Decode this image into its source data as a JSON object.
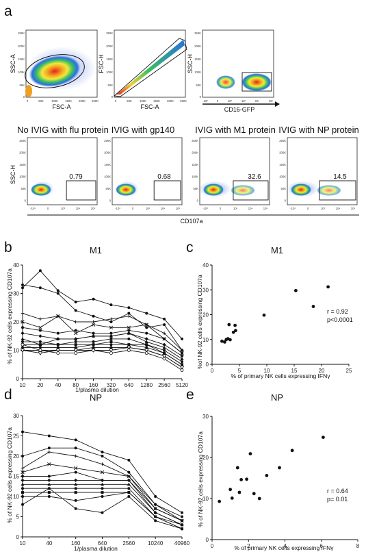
{
  "panel_labels": {
    "a": "a",
    "b": "b",
    "c": "c",
    "d": "d",
    "e": "e"
  },
  "facs_top": [
    {
      "ylabel": "SSC-A",
      "xlabel": "FSC-A",
      "yticks": [
        "250K",
        "200K",
        "150K",
        "100K",
        "50K",
        "0"
      ],
      "xticks": [
        "0",
        "50K",
        "100K",
        "150K",
        "200K",
        "250K"
      ]
    },
    {
      "ylabel": "FSC-H",
      "xlabel": "FSC-A",
      "yticks": [
        "250K",
        "200K",
        "150K",
        "100K",
        "50K",
        "0"
      ],
      "xticks": [
        "0",
        "50K",
        "100K",
        "150K",
        "200K",
        "250K"
      ]
    },
    {
      "ylabel": "SSC-H",
      "xlabel": "CD16-GFP",
      "yticks": [
        "250K",
        "200K",
        "150K",
        "100K",
        "50K",
        "0"
      ],
      "xticks": [
        "-10²",
        "0",
        "10²",
        "10³",
        "10⁴",
        "10⁵"
      ]
    }
  ],
  "facs_bottom": {
    "ylabel": "SSC-H",
    "xlabel": "CD107a",
    "yticks": [
      "250K",
      "200K",
      "150K",
      "100K",
      "50K",
      "0"
    ],
    "xticks": [
      "-10³",
      "0",
      "10³",
      "10⁴",
      "10⁵"
    ],
    "panels": [
      {
        "title": "No IVIG with flu protein",
        "percent": "0.79"
      },
      {
        "title": "IVIG with gp140",
        "percent": "0.68"
      },
      {
        "title": "IVIG with M1 protein",
        "percent": "32.6"
      },
      {
        "title": "IVIG with NP protein",
        "percent": "14.5"
      }
    ]
  },
  "chart_data": [
    {
      "id": "b",
      "type": "line",
      "title": "M1",
      "xlabel": "1/plasma dilution",
      "ylabel": "% of NK-92 cells expressing CD107a",
      "categories": [
        "10",
        "20",
        "40",
        "80",
        "160",
        "320",
        "640",
        "1280",
        "2560",
        "5120"
      ],
      "ylim": [
        0,
        40
      ],
      "yticks": [
        "0",
        "10",
        "20",
        "30",
        "40"
      ],
      "series": [
        {
          "values": [
            32,
            38,
            31,
            27,
            28,
            26,
            25,
            23,
            21,
            14
          ]
        },
        {
          "values": [
            33,
            32,
            30,
            24,
            22,
            20,
            23,
            18,
            19,
            10
          ]
        },
        {
          "values": [
            23,
            21,
            22,
            20,
            20,
            21,
            22,
            19,
            16,
            10
          ]
        },
        {
          "values": [
            20,
            18,
            22,
            16,
            19,
            18,
            18,
            19,
            14,
            9
          ]
        },
        {
          "values": [
            18,
            17,
            16,
            17,
            16,
            16,
            17,
            16,
            14,
            9
          ]
        },
        {
          "values": [
            16,
            15,
            14,
            14,
            15,
            15,
            16,
            14,
            12,
            8
          ]
        },
        {
          "values": [
            14,
            12,
            14,
            14,
            15,
            15,
            16,
            13,
            11,
            7
          ]
        },
        {
          "values": [
            13,
            13,
            12,
            13,
            13,
            14,
            14,
            12,
            10,
            6
          ]
        },
        {
          "values": [
            12,
            12,
            12,
            12,
            12,
            13,
            12,
            12,
            9,
            5
          ]
        },
        {
          "values": [
            11,
            11,
            11,
            11,
            12,
            12,
            12,
            11,
            9,
            5
          ]
        },
        {
          "values": [
            10,
            10,
            10,
            10,
            11,
            11,
            11,
            10,
            8,
            4
          ]
        },
        {
          "values": [
            10,
            9,
            10,
            10,
            10,
            10,
            11,
            10,
            8,
            4
          ]
        },
        {
          "values": [
            12,
            10,
            9,
            9,
            10,
            9,
            10,
            9,
            7,
            3
          ]
        }
      ]
    },
    {
      "id": "c",
      "type": "scatter",
      "title": "M1",
      "xlabel": "% of primary NK cells expressing IFNγ",
      "ylabel": "%of NK-92 cells expressing CD107a",
      "xlim": [
        0,
        25
      ],
      "ylim": [
        0,
        40
      ],
      "xticks": [
        "0",
        "5",
        "10",
        "15",
        "20",
        "25"
      ],
      "yticks": [
        "0",
        "10",
        "20",
        "30",
        "40"
      ],
      "annotation": [
        "r = 0.92",
        "p<0.0001"
      ],
      "points": [
        [
          1.8,
          9.3
        ],
        [
          2.3,
          9.0
        ],
        [
          2.6,
          10.0
        ],
        [
          2.9,
          10.3
        ],
        [
          3.1,
          16.0
        ],
        [
          3.3,
          9.9
        ],
        [
          3.9,
          12.9
        ],
        [
          4.2,
          15.7
        ],
        [
          4.3,
          13.6
        ],
        [
          9.5,
          19.8
        ],
        [
          15.3,
          29.7
        ],
        [
          18.5,
          23.3
        ],
        [
          21.2,
          31.2
        ]
      ]
    },
    {
      "id": "d",
      "type": "line",
      "title": "NP",
      "xlabel": "1/plasma dilution",
      "ylabel": "% of NK-92 cells expressing CD107a",
      "categories": [
        "10",
        "40",
        "160",
        "640",
        "2560",
        "10240",
        "40960"
      ],
      "ylim": [
        0,
        30
      ],
      "yticks": [
        "0",
        "5",
        "10",
        "15",
        "20",
        "25",
        "30"
      ],
      "series": [
        {
          "values": [
            26,
            25,
            24,
            21,
            19,
            10,
            6
          ]
        },
        {
          "values": [
            20,
            22,
            22,
            20,
            16,
            8,
            5
          ]
        },
        {
          "values": [
            17,
            21,
            20,
            18,
            15,
            8,
            4
          ]
        },
        {
          "values": [
            16,
            18,
            17,
            16,
            15,
            7,
            4
          ]
        },
        {
          "values": [
            15,
            15,
            16,
            14,
            14,
            7,
            4
          ]
        },
        {
          "values": [
            14,
            14,
            14,
            14,
            14,
            6,
            3
          ]
        },
        {
          "values": [
            13,
            13,
            13,
            13,
            13,
            6,
            3
          ]
        },
        {
          "values": [
            12,
            12,
            12,
            12,
            12,
            5,
            3
          ]
        },
        {
          "values": [
            11,
            11,
            11,
            11,
            11,
            5,
            2
          ]
        },
        {
          "values": [
            10,
            10,
            9,
            10,
            11,
            5,
            2
          ]
        },
        {
          "values": [
            8,
            12,
            7,
            6,
            10,
            4,
            2
          ]
        }
      ]
    },
    {
      "id": "e",
      "type": "scatter",
      "title": "NP",
      "xlabel": "% of primary NK cells expressing IFNγ",
      "ylabel": "% of NK-92 cells expressing CD107a",
      "xlim": [
        0,
        8
      ],
      "ylim": [
        0,
        30
      ],
      "xticks": [
        "0",
        "2",
        "4",
        "6",
        "8"
      ],
      "yticks": [
        "0",
        "10",
        "20",
        "30"
      ],
      "annotation": [
        "r = 0.64",
        "p= 0.01"
      ],
      "points": [
        [
          0.4,
          9.3
        ],
        [
          1.0,
          12.2
        ],
        [
          1.1,
          10.1
        ],
        [
          1.4,
          17.5
        ],
        [
          1.5,
          11.5
        ],
        [
          1.6,
          14.6
        ],
        [
          1.9,
          14.7
        ],
        [
          2.1,
          20.9
        ],
        [
          2.3,
          11.2
        ],
        [
          2.6,
          10.0
        ],
        [
          3.0,
          15.6
        ],
        [
          3.7,
          17.5
        ],
        [
          4.4,
          21.7
        ],
        [
          6.1,
          24.9
        ]
      ]
    }
  ]
}
